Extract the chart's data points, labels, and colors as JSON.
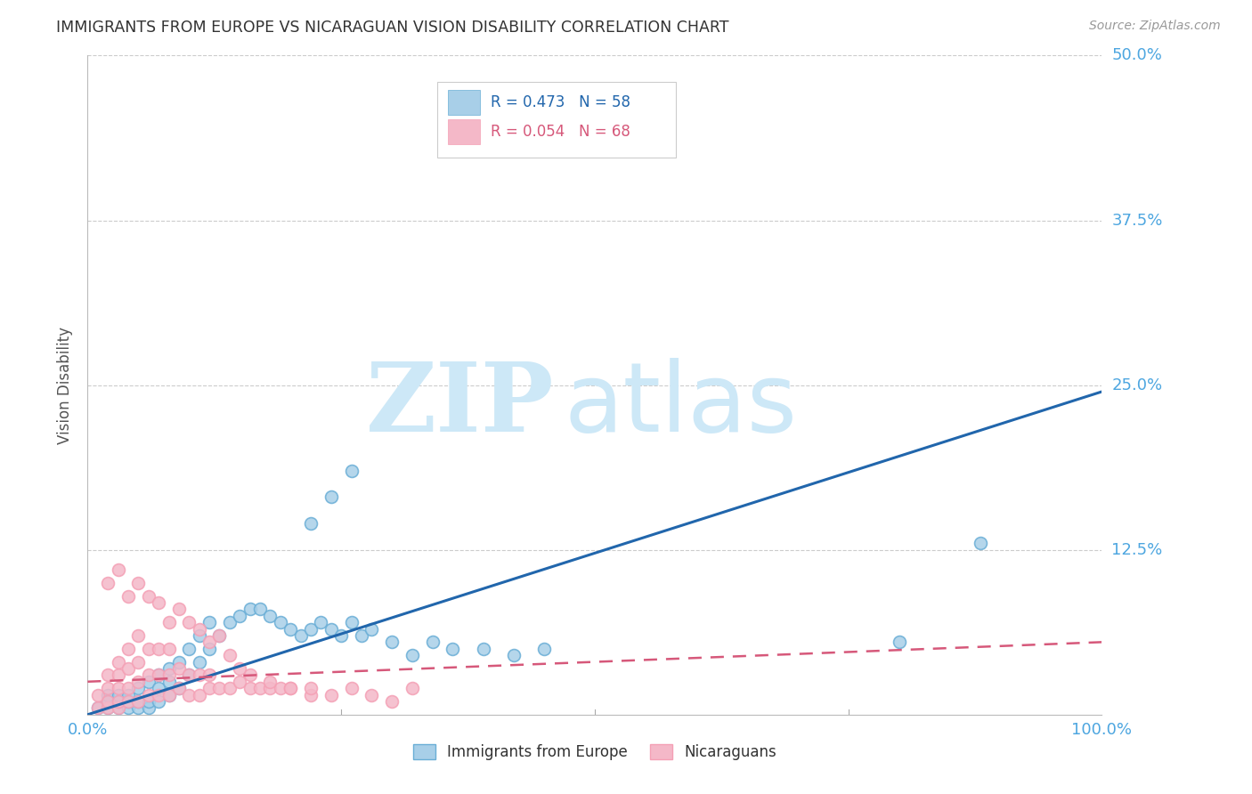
{
  "title": "IMMIGRANTS FROM EUROPE VS NICARAGUAN VISION DISABILITY CORRELATION CHART",
  "source": "Source: ZipAtlas.com",
  "ylabel": "Vision Disability",
  "xlim": [
    0.0,
    1.0
  ],
  "ylim": [
    0.0,
    0.5
  ],
  "yticks": [
    0.0,
    0.125,
    0.25,
    0.375,
    0.5
  ],
  "ytick_labels": [
    "",
    "12.5%",
    "25.0%",
    "37.5%",
    "50.0%"
  ],
  "xticks": [
    0.0,
    0.25,
    0.5,
    0.75,
    1.0
  ],
  "xtick_labels": [
    "0.0%",
    "",
    "",
    "",
    "100.0%"
  ],
  "blue_R": 0.473,
  "blue_N": 58,
  "pink_R": 0.054,
  "pink_N": 68,
  "blue_fill_color": "#a8cfe8",
  "pink_fill_color": "#f4b8c8",
  "blue_edge_color": "#6aaed6",
  "pink_edge_color": "#f4a0b5",
  "blue_line_color": "#2166ac",
  "pink_line_color": "#d6587a",
  "tick_label_color": "#4da6e0",
  "ylabel_color": "#555555",
  "background_color": "#ffffff",
  "grid_color": "#cccccc",
  "watermark_zip_color": "#cde8f7",
  "watermark_atlas_color": "#cde8f7",
  "title_color": "#333333",
  "source_color": "#999999",
  "legend_border_color": "#cccccc",
  "blue_line_x": [
    0.0,
    1.0
  ],
  "blue_line_y": [
    0.0,
    0.245
  ],
  "pink_line_x": [
    0.0,
    1.0
  ],
  "pink_line_y": [
    0.025,
    0.055
  ],
  "blue_scatter_x": [
    0.01,
    0.02,
    0.02,
    0.02,
    0.03,
    0.03,
    0.03,
    0.04,
    0.04,
    0.04,
    0.05,
    0.05,
    0.05,
    0.06,
    0.06,
    0.06,
    0.07,
    0.07,
    0.07,
    0.08,
    0.08,
    0.08,
    0.09,
    0.09,
    0.1,
    0.1,
    0.11,
    0.11,
    0.12,
    0.12,
    0.13,
    0.14,
    0.15,
    0.16,
    0.17,
    0.18,
    0.19,
    0.2,
    0.21,
    0.22,
    0.23,
    0.24,
    0.25,
    0.26,
    0.27,
    0.28,
    0.3,
    0.32,
    0.34,
    0.36,
    0.22,
    0.24,
    0.26,
    0.88,
    0.8,
    0.39,
    0.42,
    0.45
  ],
  "blue_scatter_y": [
    0.005,
    0.005,
    0.01,
    0.015,
    0.005,
    0.01,
    0.015,
    0.005,
    0.01,
    0.015,
    0.005,
    0.01,
    0.02,
    0.005,
    0.01,
    0.025,
    0.01,
    0.02,
    0.03,
    0.015,
    0.025,
    0.035,
    0.02,
    0.04,
    0.03,
    0.05,
    0.04,
    0.06,
    0.05,
    0.07,
    0.06,
    0.07,
    0.075,
    0.08,
    0.08,
    0.075,
    0.07,
    0.065,
    0.06,
    0.065,
    0.07,
    0.065,
    0.06,
    0.07,
    0.06,
    0.065,
    0.055,
    0.045,
    0.055,
    0.05,
    0.145,
    0.165,
    0.185,
    0.13,
    0.055,
    0.05,
    0.045,
    0.05
  ],
  "pink_scatter_x": [
    0.01,
    0.01,
    0.02,
    0.02,
    0.02,
    0.02,
    0.03,
    0.03,
    0.03,
    0.03,
    0.03,
    0.04,
    0.04,
    0.04,
    0.04,
    0.05,
    0.05,
    0.05,
    0.05,
    0.06,
    0.06,
    0.06,
    0.07,
    0.07,
    0.07,
    0.08,
    0.08,
    0.08,
    0.09,
    0.09,
    0.1,
    0.1,
    0.11,
    0.11,
    0.12,
    0.12,
    0.13,
    0.14,
    0.15,
    0.16,
    0.17,
    0.18,
    0.19,
    0.2,
    0.22,
    0.24,
    0.26,
    0.28,
    0.3,
    0.32,
    0.04,
    0.06,
    0.08,
    0.1,
    0.12,
    0.02,
    0.03,
    0.05,
    0.07,
    0.09,
    0.11,
    0.13,
    0.14,
    0.15,
    0.16,
    0.18,
    0.2,
    0.22
  ],
  "pink_scatter_y": [
    0.005,
    0.015,
    0.005,
    0.01,
    0.02,
    0.03,
    0.005,
    0.01,
    0.02,
    0.03,
    0.04,
    0.01,
    0.02,
    0.035,
    0.05,
    0.01,
    0.025,
    0.04,
    0.06,
    0.015,
    0.03,
    0.05,
    0.015,
    0.03,
    0.05,
    0.015,
    0.03,
    0.05,
    0.02,
    0.035,
    0.015,
    0.03,
    0.015,
    0.03,
    0.02,
    0.03,
    0.02,
    0.02,
    0.025,
    0.02,
    0.02,
    0.02,
    0.02,
    0.02,
    0.015,
    0.015,
    0.02,
    0.015,
    0.01,
    0.02,
    0.09,
    0.09,
    0.07,
    0.07,
    0.055,
    0.1,
    0.11,
    0.1,
    0.085,
    0.08,
    0.065,
    0.06,
    0.045,
    0.035,
    0.03,
    0.025,
    0.02,
    0.02
  ]
}
